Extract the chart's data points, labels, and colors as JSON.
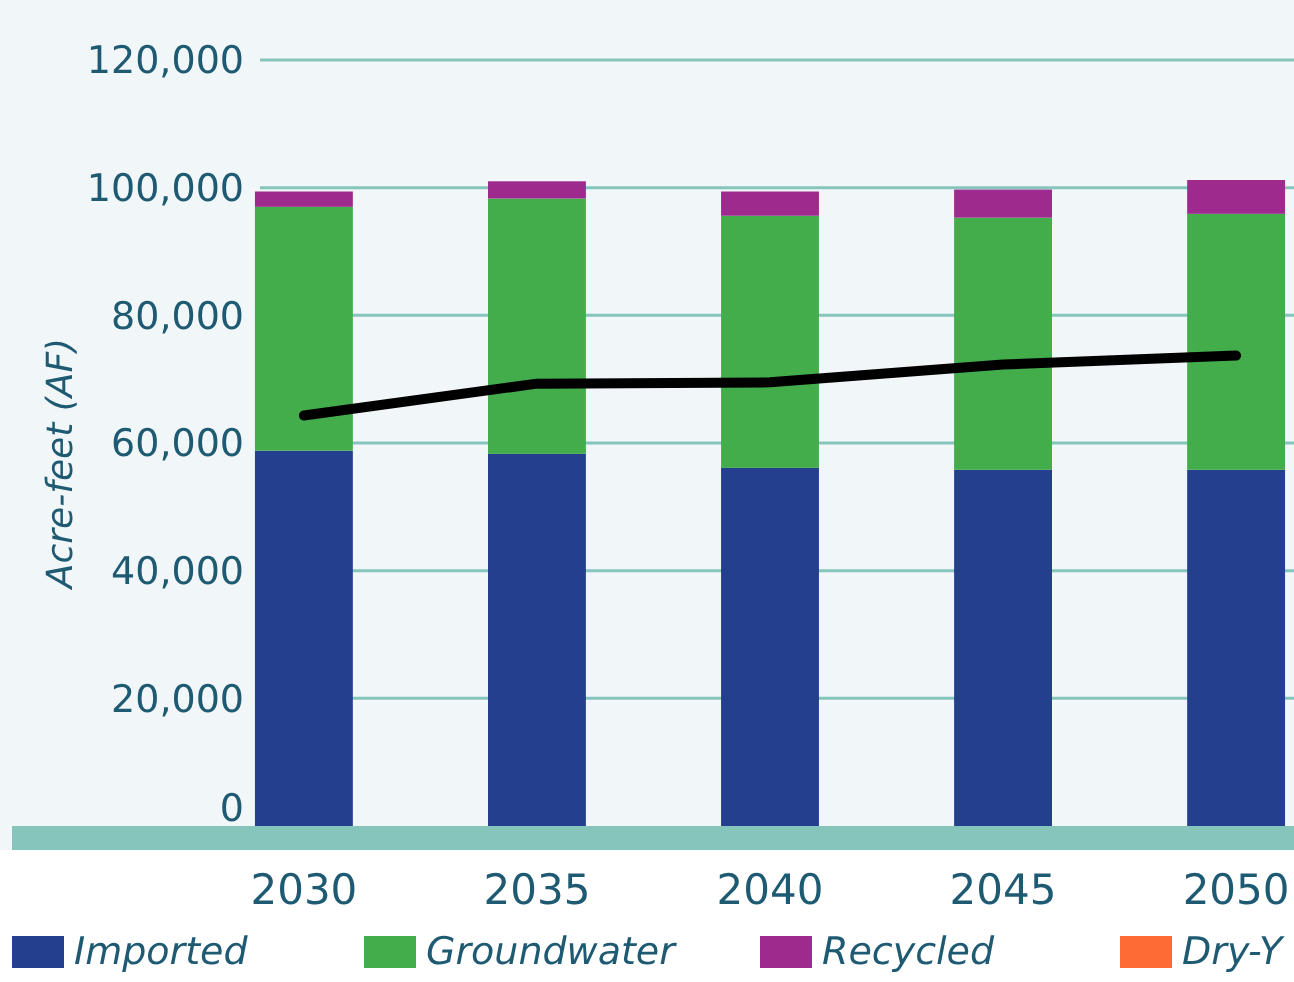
{
  "chart_data": {
    "type": "bar",
    "stacked": true,
    "ylabel": "Acre-feet (AF)",
    "categories": [
      "2030",
      "2035",
      "2040",
      "2045",
      "2050"
    ],
    "series": [
      {
        "name": "Imported",
        "color": "#243f8e",
        "values": [
          58800,
          58300,
          56100,
          55800,
          55800
        ]
      },
      {
        "name": "Groundwater",
        "color": "#42ad4a",
        "values": [
          38200,
          40000,
          39500,
          39500,
          40100
        ]
      },
      {
        "name": "Recycled",
        "color": "#9e2a8e",
        "values": [
          2400,
          2700,
          3800,
          4400,
          5300
        ]
      },
      {
        "name": "Dry-Y",
        "color": "#ff6b35",
        "values": [
          0,
          0,
          0,
          0,
          0
        ]
      },
      {
        "type": "line",
        "color": "#000000",
        "values": [
          64300,
          69300,
          69500,
          72300,
          73700
        ]
      }
    ],
    "ylim": [
      0,
      120000
    ],
    "yticks": [
      0,
      {
        "value": 20000,
        "label": "20,000"
      },
      {
        "value": 40000,
        "label": "40,000"
      },
      {
        "value": 60000,
        "label": "60,000"
      },
      {
        "value": 80000,
        "label": "80,000"
      },
      {
        "value": 100000,
        "label": "100,000"
      },
      {
        "value": 120000,
        "label": "120,000"
      }
    ],
    "grid": "y",
    "legend": "bottom",
    "marker": "none",
    "line_style": "solid"
  }
}
